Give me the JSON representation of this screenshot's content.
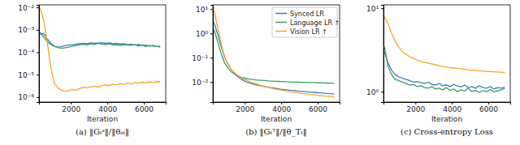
{
  "chart_data": [
    {
      "type": "line",
      "title": "(a) ‖Gₜˢ‖/‖θₛₜ‖",
      "x_label": "Iteration",
      "log": "y",
      "x": [
        300,
        500,
        700,
        900,
        1100,
        1300,
        1500,
        1700,
        1900,
        2100,
        2300,
        2500,
        2700,
        2900,
        3100,
        3300,
        3500,
        3700,
        3900,
        4100,
        4300,
        4500,
        4700,
        4900,
        5100,
        5300,
        5500,
        5700,
        5900,
        6100,
        6300,
        6500,
        6700,
        6900
      ],
      "xlim": [
        250,
        7200
      ],
      "xticks": [
        2000,
        4000,
        6000
      ],
      "ylim": [
        6e-07,
        0.013
      ],
      "yticks": [
        {
          "value": 1e-06,
          "label": "10⁻⁶"
        },
        {
          "value": 1e-05,
          "label": "10⁻⁵"
        },
        {
          "value": 0.0001,
          "label": "10⁻⁴"
        },
        {
          "value": 0.001,
          "label": "10⁻³"
        },
        {
          "value": 0.01,
          "label": "10⁻²"
        }
      ],
      "series": [
        {
          "color": "#3f7fb3",
          "values": [
            0.0008,
            0.0005,
            0.0003,
            0.00022,
            0.00018,
            0.00017,
            0.00018,
            0.0002,
            0.00021,
            0.00022,
            0.00023,
            0.00024,
            0.00025,
            0.00024,
            0.00026,
            0.00025,
            0.00026,
            0.00027,
            0.00025,
            0.00026,
            0.00024,
            0.00025,
            0.00023,
            0.00024,
            0.00022,
            0.00023,
            0.00021,
            0.00022,
            0.0002,
            0.00021,
            0.00019,
            0.0002,
            0.00018,
            0.00019
          ]
        },
        {
          "color": "#3d9970",
          "values": [
            0.0006,
            0.0007,
            0.0004,
            0.00025,
            0.00019,
            0.00016,
            0.00015,
            0.00016,
            0.00017,
            0.00019,
            0.0002,
            0.00022,
            0.00023,
            0.00021,
            0.00024,
            0.00022,
            0.00025,
            0.00023,
            0.00022,
            0.00024,
            0.00021,
            0.00022,
            0.0002,
            0.00022,
            0.00021,
            0.0002,
            0.00022,
            0.00019,
            0.00021,
            0.00018,
            0.0002,
            0.00019,
            0.00018,
            0.00017
          ]
        },
        {
          "color": "#f5a623",
          "values": [
            0.01,
            0.003,
            0.0003,
            2e-05,
            4e-06,
            2.5e-06,
            2e-06,
            1.8e-06,
            2e-06,
            2.2e-06,
            2e-06,
            2.5e-06,
            2.7e-06,
            2.6e-06,
            2.9e-06,
            3e-06,
            2.8e-06,
            3.2e-06,
            3.5e-06,
            3.3e-06,
            3.8e-06,
            3.5e-06,
            4e-06,
            3.7e-06,
            4.2e-06,
            3.9e-06,
            4.4e-06,
            4.1e-06,
            4.6e-06,
            4.3e-06,
            4.8e-06,
            4.5e-06,
            4.9e-06,
            4.7e-06
          ]
        }
      ]
    },
    {
      "type": "line",
      "title": "(b) ‖Gₜᵀ‖/‖θ_Tₜ‖",
      "x_label": "Iteration",
      "log": "y",
      "legend": "upper right",
      "x": [
        300,
        500,
        700,
        900,
        1100,
        1300,
        1500,
        1700,
        1900,
        2100,
        2300,
        2500,
        2700,
        2900,
        3100,
        3300,
        3500,
        3700,
        3900,
        4100,
        4300,
        4500,
        4700,
        4900,
        5100,
        5300,
        5500,
        5700,
        5900,
        6100,
        6300,
        6500,
        6700,
        6900
      ],
      "xlim": [
        250,
        7200
      ],
      "xticks": [
        2000,
        4000,
        6000
      ],
      "ylim": [
        0.0015,
        15
      ],
      "yticks": [
        {
          "value": 0.01,
          "label": "10⁻²"
        },
        {
          "value": 0.1,
          "label": "10⁻¹"
        },
        {
          "value": 1,
          "label": "10⁰"
        },
        {
          "value": 10,
          "label": "10¹"
        }
      ],
      "series": [
        {
          "name": "Synced LR",
          "color": "#3f7fb3",
          "values": [
            3,
            1,
            0.3,
            0.1,
            0.05,
            0.03,
            0.02,
            0.015,
            0.012,
            0.01,
            0.009,
            0.008,
            0.0075,
            0.007,
            0.0065,
            0.006,
            0.0058,
            0.0055,
            0.0052,
            0.005,
            0.0048,
            0.0046,
            0.0045,
            0.0043,
            0.0042,
            0.004,
            0.0039,
            0.0038,
            0.0037,
            0.0036,
            0.0035,
            0.0034,
            0.0033,
            0.0032
          ]
        },
        {
          "name": "Language LR ↑",
          "color": "#3d9970",
          "values": [
            1.5,
            0.5,
            0.15,
            0.06,
            0.035,
            0.025,
            0.02,
            0.017,
            0.015,
            0.014,
            0.013,
            0.0125,
            0.012,
            0.0118,
            0.0115,
            0.0112,
            0.011,
            0.0108,
            0.0106,
            0.0105,
            0.0103,
            0.0102,
            0.01,
            0.0099,
            0.0098,
            0.0097,
            0.0096,
            0.0095,
            0.0094,
            0.0093,
            0.0092,
            0.0091,
            0.009,
            0.0089
          ]
        },
        {
          "name": "Vision LR ↑",
          "color": "#f5a623",
          "values": [
            10,
            2,
            0.4,
            0.1,
            0.05,
            0.03,
            0.022,
            0.017,
            0.014,
            0.012,
            0.01,
            0.009,
            0.008,
            0.0072,
            0.0066,
            0.006,
            0.0055,
            0.0051,
            0.0048,
            0.0045,
            0.0042,
            0.004,
            0.0038,
            0.0036,
            0.0034,
            0.0033,
            0.0031,
            0.003,
            0.0029,
            0.0028,
            0.0027,
            0.0026,
            0.0026,
            0.0025
          ]
        }
      ]
    },
    {
      "type": "line",
      "title": "(c) Cross-entropy Loss",
      "x_label": "Iteration",
      "log": "y",
      "x": [
        300,
        500,
        700,
        900,
        1100,
        1300,
        1500,
        1700,
        1900,
        2100,
        2300,
        2500,
        2700,
        2900,
        3100,
        3300,
        3500,
        3700,
        3900,
        4100,
        4300,
        4500,
        4700,
        4900,
        5100,
        5300,
        5500,
        5700,
        5900,
        6100,
        6300,
        6500,
        6700,
        6900
      ],
      "xlim": [
        250,
        7200
      ],
      "xticks": [
        2000,
        4000,
        6000
      ],
      "ylim": [
        0.75,
        11
      ],
      "yticks": [
        {
          "value": 1,
          "label": "10⁰"
        },
        {
          "value": 10,
          "label": "10¹"
        }
      ],
      "series": [
        {
          "color": "#3f7fb3",
          "values": [
            3,
            2.2,
            1.8,
            1.6,
            1.5,
            1.45,
            1.4,
            1.35,
            1.3,
            1.32,
            1.28,
            1.25,
            1.3,
            1.22,
            1.2,
            1.25,
            1.18,
            1.2,
            1.15,
            1.22,
            1.17,
            1.14,
            1.2,
            1.12,
            1.15,
            1.1,
            1.18,
            1.12,
            1.1,
            1.15,
            1.08,
            1.12,
            1.1,
            1.13
          ]
        },
        {
          "color": "#3d9970",
          "values": [
            3.5,
            2,
            1.6,
            1.4,
            1.35,
            1.3,
            1.25,
            1.2,
            1.22,
            1.15,
            1.18,
            1.12,
            1.1,
            1.15,
            1.08,
            1.1,
            1.05,
            1.12,
            1.03,
            1.08,
            1.0,
            1.05,
            1.02,
            1.1,
            1.0,
            1.04,
            0.98,
            1.03,
            1.0,
            1.06,
            1.0,
            1.02,
            1.05,
            1.1
          ]
        },
        {
          "color": "#f5a623",
          "values": [
            8,
            6.5,
            5,
            4,
            3.4,
            3,
            2.8,
            2.6,
            2.5,
            2.4,
            2.3,
            2.25,
            2.2,
            2.15,
            2.1,
            2.05,
            2,
            1.98,
            1.95,
            1.92,
            1.9,
            1.88,
            1.85,
            1.83,
            1.8,
            1.8,
            1.78,
            1.76,
            1.75,
            1.74,
            1.73,
            1.72,
            1.71,
            1.7
          ]
        }
      ]
    }
  ]
}
